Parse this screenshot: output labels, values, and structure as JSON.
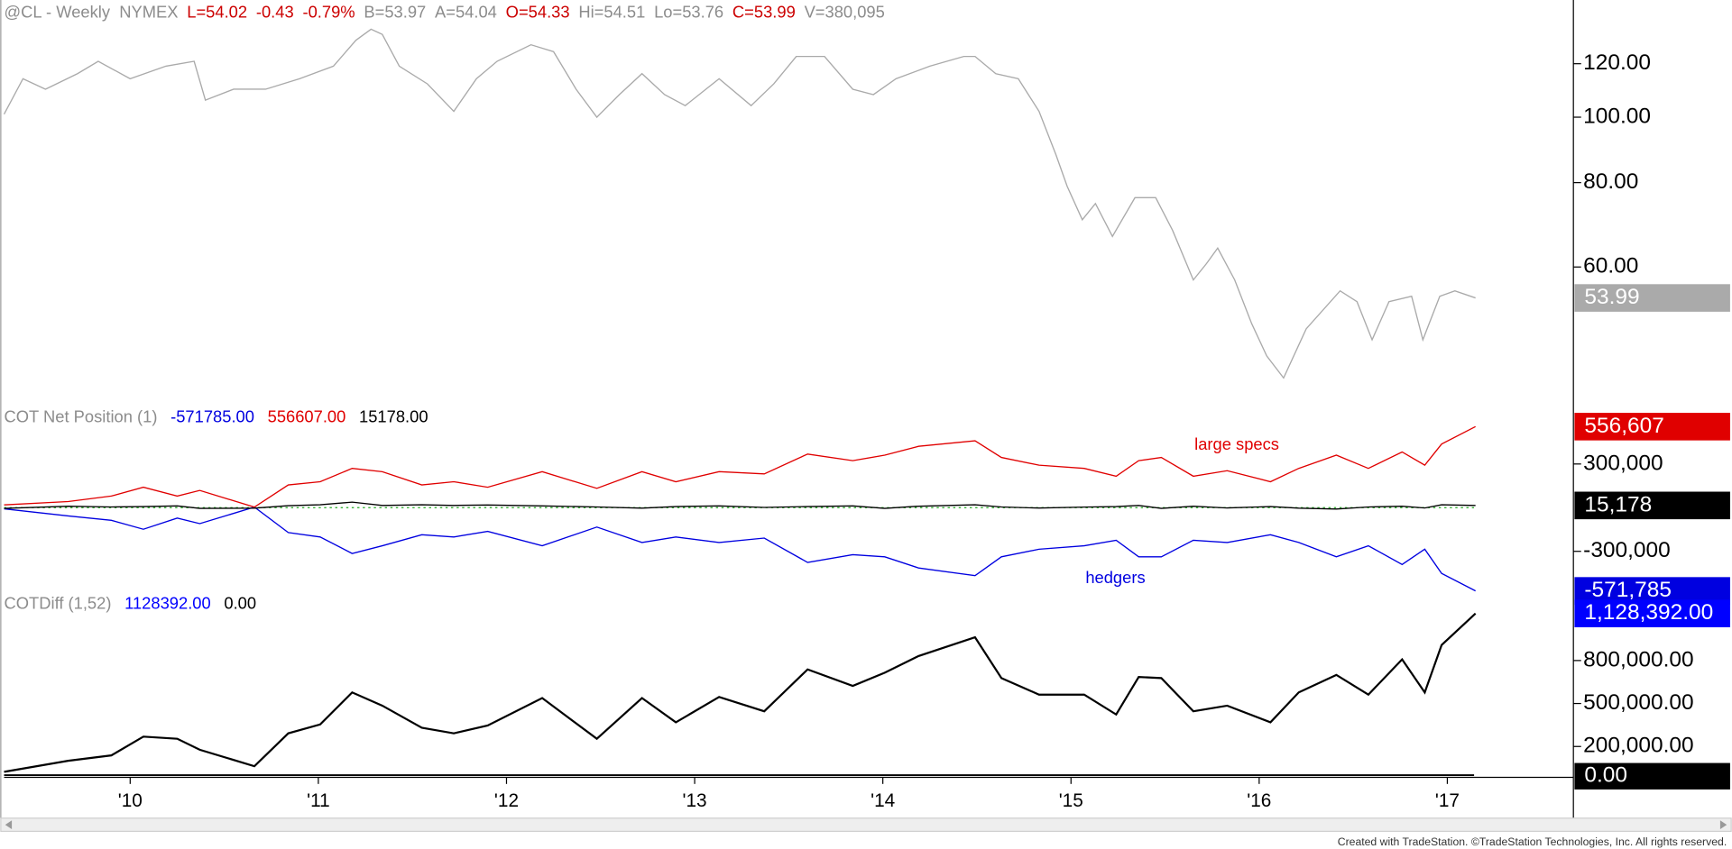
{
  "header": {
    "symbol": "@CL - Weekly  NYMEX",
    "items": [
      {
        "text": "L=54.02",
        "color": "#cc0000"
      },
      {
        "text": "-0.43",
        "color": "#cc0000"
      },
      {
        "text": "-0.79%",
        "color": "#cc0000"
      },
      {
        "text": "B=53.97",
        "color": "#8c8c8c"
      },
      {
        "text": "A=54.04",
        "color": "#8c8c8c"
      },
      {
        "text": "O=54.33",
        "color": "#cc0000"
      },
      {
        "text": "Hi=54.51",
        "color": "#8c8c8c"
      },
      {
        "text": "Lo=53.76",
        "color": "#8c8c8c"
      },
      {
        "text": "C=53.99",
        "color": "#cc0000"
      },
      {
        "text": "V=380,095",
        "color": "#8c8c8c"
      }
    ]
  },
  "xlim": [
    2009.33,
    2017.67
  ],
  "xticks": [
    {
      "value": 2010,
      "label": "'10"
    },
    {
      "value": 2011,
      "label": "'11"
    },
    {
      "value": 2012,
      "label": "'12"
    },
    {
      "value": 2013,
      "label": "'13"
    },
    {
      "value": 2014,
      "label": "'14"
    },
    {
      "value": 2015,
      "label": "'15"
    },
    {
      "value": 2016,
      "label": "'16"
    },
    {
      "value": 2017,
      "label": "'17"
    }
  ],
  "footer": "Created with TradeStation. ©TradeStation Technologies, Inc. All rights reserved.",
  "chart_data": [
    {
      "type": "line",
      "log_scale": true,
      "ylim": [
        40,
        148
      ],
      "yticks": [
        {
          "value": 60,
          "label": "60.00"
        },
        {
          "value": 80,
          "label": "80.00"
        },
        {
          "value": 100,
          "label": "100.00"
        },
        {
          "value": 120,
          "label": "120.00"
        }
      ],
      "x": [
        2009.33,
        2009.43,
        2009.55,
        2009.72,
        2009.83,
        2010.0,
        2010.19,
        2010.34,
        2010.4,
        2010.55,
        2010.72,
        2010.9,
        2011.08,
        2011.2,
        2011.28,
        2011.34,
        2011.43,
        2011.58,
        2011.72,
        2011.84,
        2011.95,
        2012.13,
        2012.25,
        2012.37,
        2012.48,
        2012.6,
        2012.72,
        2012.84,
        2012.95,
        2013.13,
        2013.3,
        2013.42,
        2013.54,
        2013.69,
        2013.84,
        2013.95,
        2014.07,
        2014.25,
        2014.43,
        2014.49,
        2014.6,
        2014.72,
        2014.83,
        2014.92,
        2014.98,
        2015.06,
        2015.13,
        2015.22,
        2015.34,
        2015.45,
        2015.54,
        2015.65,
        2015.72,
        2015.78,
        2015.87,
        2015.96,
        2016.04,
        2016.13,
        2016.25,
        2016.43,
        2016.52,
        2016.6,
        2016.69,
        2016.81,
        2016.87,
        2016.96,
        2017.04,
        2017.15
      ],
      "series": [
        {
          "color": "#aaaaaa",
          "tag": "53.99",
          "values": [
            101,
            114,
            110,
            116,
            121,
            114,
            119,
            121,
            106,
            110,
            110,
            114,
            119,
            130,
            135,
            132.6,
            119,
            112,
            102,
            114,
            121,
            128,
            125,
            110,
            100,
            108,
            116,
            108,
            104,
            114,
            104,
            112,
            123,
            123,
            110,
            108,
            114,
            119,
            123,
            123,
            116,
            114,
            102,
            88,
            79,
            70.5,
            74.5,
            66.6,
            76,
            76,
            68,
            57.4,
            60.7,
            64,
            57.4,
            49.5,
            44.3,
            41.1,
            48.6,
            55.3,
            53.3,
            46.8,
            53.3,
            54.3,
            46.8,
            54.3,
            55.3,
            53.99
          ]
        }
      ]
    },
    {
      "type": "line",
      "title": "COT Net Position (1)",
      "ylim": [
        -580000,
        700000
      ],
      "yticks": [
        {
          "value": -300000,
          "label": "-300,000"
        },
        {
          "value": 300000,
          "label": "300,000"
        }
      ],
      "annotations": [
        "large specs",
        "hedgers"
      ],
      "x": [
        2009.33,
        2009.67,
        2009.9,
        2010.07,
        2010.25,
        2010.37,
        2010.66,
        2010.84,
        2011.01,
        2011.18,
        2011.34,
        2011.55,
        2011.72,
        2011.9,
        2012.19,
        2012.48,
        2012.72,
        2012.9,
        2013.13,
        2013.37,
        2013.6,
        2013.84,
        2014.01,
        2014.19,
        2014.49,
        2014.63,
        2014.83,
        2015.07,
        2015.24,
        2015.36,
        2015.48,
        2015.65,
        2015.83,
        2016.06,
        2016.21,
        2016.41,
        2016.58,
        2016.76,
        2016.88,
        2016.97,
        2017.15
      ],
      "series": [
        {
          "color": "#0000e0",
          "legend_value": "-571785.00",
          "tag": "-571,785",
          "values": [
            -8000,
            -57000,
            -87000,
            -148000,
            -72000,
            -110000,
            4000,
            -171000,
            -201000,
            -315000,
            -262000,
            -186000,
            -201000,
            -163000,
            -262000,
            -133000,
            -239000,
            -201000,
            -239000,
            -209000,
            -376000,
            -323000,
            -338000,
            -414000,
            -467000,
            -338000,
            -285000,
            -262000,
            -224000,
            -338000,
            -338000,
            -224000,
            -239000,
            -186000,
            -239000,
            -338000,
            -262000,
            -391000,
            -285000,
            -452000,
            -571785
          ]
        },
        {
          "color": "#e00000",
          "legend_value": "556607.00",
          "tag": "556,607",
          "values": [
            19000,
            42000,
            80000,
            140000,
            80000,
            118000,
            4000,
            156000,
            178000,
            270000,
            247000,
            156000,
            178000,
            140000,
            247000,
            133000,
            247000,
            178000,
            247000,
            232000,
            368000,
            323000,
            361000,
            421000,
            459000,
            345000,
            292000,
            270000,
            216000,
            323000,
            345000,
            216000,
            254000,
            178000,
            270000,
            361000,
            270000,
            383000,
            292000,
            437000,
            556607
          ]
        },
        {
          "color": "#000000",
          "legend_value": "15178.00",
          "tag": "15,178",
          "values": [
            -5000,
            10000,
            5000,
            8000,
            12000,
            -5000,
            -4000,
            14000,
            20000,
            38000,
            15000,
            20000,
            15000,
            18000,
            12000,
            5000,
            -4000,
            8000,
            12000,
            2000,
            8000,
            12000,
            -5000,
            10000,
            20000,
            5000,
            -3000,
            4000,
            8000,
            15000,
            -5000,
            10000,
            -2000,
            8000,
            -4000,
            -10000,
            5000,
            10000,
            -2000,
            20000,
            15178
          ]
        }
      ]
    },
    {
      "type": "line",
      "title": "COTDiff (1,52)",
      "ylim": [
        0,
        1270000
      ],
      "yticks": [
        {
          "value": 200000,
          "label": "200,000.00"
        },
        {
          "value": 500000,
          "label": "500,000.00"
        },
        {
          "value": 800000,
          "label": "800,000.00"
        }
      ],
      "x": [
        2009.33,
        2009.67,
        2009.9,
        2010.07,
        2010.25,
        2010.37,
        2010.66,
        2010.84,
        2011.01,
        2011.18,
        2011.34,
        2011.55,
        2011.72,
        2011.9,
        2012.19,
        2012.48,
        2012.72,
        2012.9,
        2013.13,
        2013.37,
        2013.6,
        2013.84,
        2014.01,
        2014.19,
        2014.49,
        2014.63,
        2014.83,
        2015.07,
        2015.24,
        2015.36,
        2015.48,
        2015.65,
        2015.83,
        2016.06,
        2016.21,
        2016.41,
        2016.58,
        2016.76,
        2016.88,
        2016.97,
        2017.15
      ],
      "series": [
        {
          "color": "#000000",
          "label_color": "#0000ff",
          "legend_value": "1128392.00",
          "tag": "1,128,392.00",
          "values": [
            23000,
            100000,
            138000,
            269000,
            254000,
            177000,
            62000,
            292000,
            354000,
            577000,
            485000,
            331000,
            292000,
            346000,
            538000,
            254000,
            538000,
            369000,
            546000,
            446000,
            738000,
            623000,
            715000,
            831000,
            962000,
            677000,
            562000,
            562000,
            423000,
            685000,
            677000,
            446000,
            485000,
            369000,
            577000,
            700000,
            562000,
            808000,
            577000,
            908000,
            1128392
          ]
        }
      ],
      "baseline": {
        "value": 0,
        "color": "#000000",
        "legend_value": "0.00",
        "tag": "0.00"
      }
    }
  ]
}
